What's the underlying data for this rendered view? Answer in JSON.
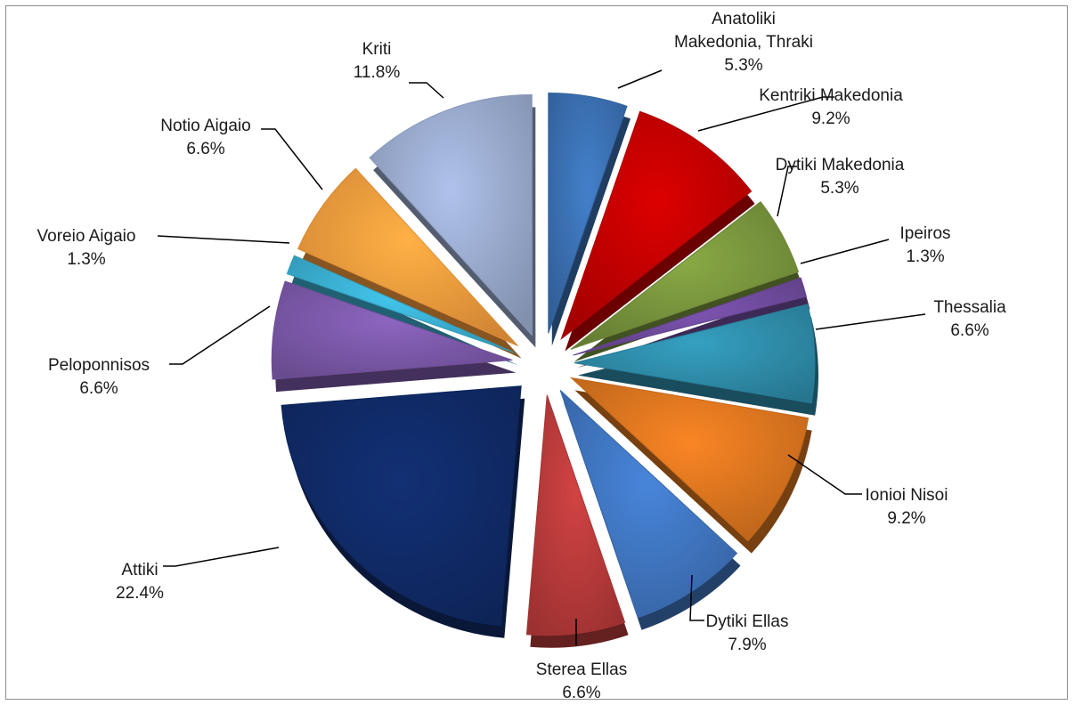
{
  "chart_data": {
    "type": "pie",
    "title": "",
    "slices": [
      {
        "label": "Anatoliki Makedonia, Thraki",
        "label_lines": [
          "Anatoliki",
          "Makedonia, Thraki"
        ],
        "value": 5.3,
        "display": "5.3%",
        "color": "#3A6FB0"
      },
      {
        "label": "Kentriki Makedonia",
        "label_lines": [
          "Kentriki Makedonia"
        ],
        "value": 9.2,
        "display": "9.2%",
        "color": "#C00000"
      },
      {
        "label": "Dytiki Makedonia",
        "label_lines": [
          "Dytiki Makedonia"
        ],
        "value": 5.3,
        "display": "5.3%",
        "color": "#77933C"
      },
      {
        "label": "Ipeiros",
        "label_lines": [
          "Ipeiros"
        ],
        "value": 1.3,
        "display": "1.3%",
        "color": "#6E4A9B"
      },
      {
        "label": "Thessalia",
        "label_lines": [
          "Thessalia"
        ],
        "value": 6.6,
        "display": "6.6%",
        "color": "#2E8BA8"
      },
      {
        "label": "Ionioi Nisoi",
        "label_lines": [
          "Ionioi Nisoi"
        ],
        "value": 9.2,
        "display": "9.2%",
        "color": "#D9741F"
      },
      {
        "label": "Dytiki Ellas",
        "label_lines": [
          "Dytiki Ellas"
        ],
        "value": 7.9,
        "display": "7.9%",
        "color": "#3F74BE"
      },
      {
        "label": "Sterea Ellas",
        "label_lines": [
          "Sterea Ellas"
        ],
        "value": 6.6,
        "display": "6.6%",
        "color": "#B73A3A"
      },
      {
        "label": "Attiki",
        "label_lines": [
          "Attiki"
        ],
        "value": 22.4,
        "display": "22.4%",
        "color": "#102A66"
      },
      {
        "label": "Peloponnisos",
        "label_lines": [
          "Peloponnisos"
        ],
        "value": 6.6,
        "display": "6.6%",
        "color": "#7B58A8"
      },
      {
        "label": "Voreio Aigaio",
        "label_lines": [
          "Voreio Aigaio"
        ],
        "value": 1.3,
        "display": "1.3%",
        "color": "#3AAED0"
      },
      {
        "label": "Notio Aigaio",
        "label_lines": [
          "Notio Aigaio"
        ],
        "value": 6.6,
        "display": "6.6%",
        "color": "#F39A3C"
      },
      {
        "label": "Kriti",
        "label_lines": [
          "Kriti"
        ],
        "value": 11.8,
        "display": "11.8%",
        "color": "#98A9CC"
      }
    ],
    "legend": "none",
    "style": "exploded-3d"
  }
}
